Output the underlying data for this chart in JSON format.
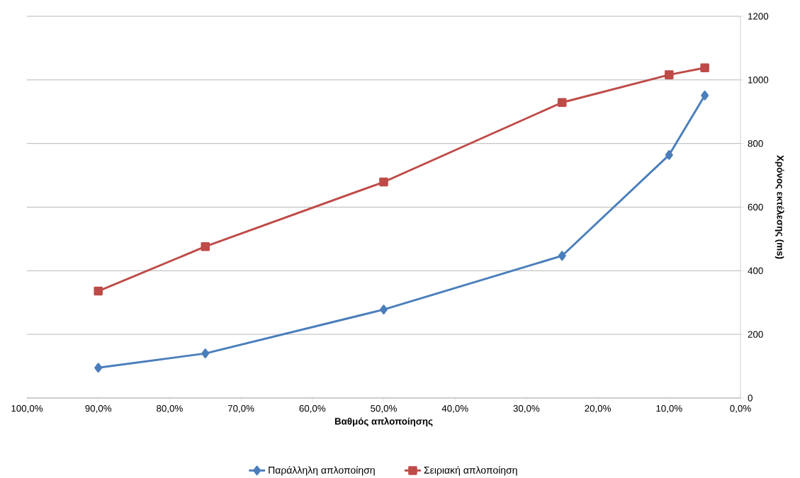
{
  "chart_data": {
    "type": "line",
    "x": [
      90,
      75,
      50,
      25,
      10,
      5
    ],
    "series": [
      {
        "name": "Παράλληλη απλοποίηση",
        "color": "#4a7ebb",
        "marker": "diamond",
        "values": [
          95,
          140,
          278,
          447,
          764,
          951
        ]
      },
      {
        "name": "Σειριακή απλοποίηση",
        "color": "#be4b48",
        "marker": "square",
        "values": [
          336,
          476,
          679,
          929,
          1016,
          1038
        ]
      }
    ],
    "xlabel": "Βαθμός απλοποίησης",
    "ylabel": "Χρόνος εκτέλεσης (ms)",
    "xlim": [
      100,
      0
    ],
    "xticks": [
      {
        "value": 100,
        "label": "100,0%"
      },
      {
        "value": 90,
        "label": "90,0%"
      },
      {
        "value": 80,
        "label": "80,0%"
      },
      {
        "value": 70,
        "label": "70,0%"
      },
      {
        "value": 60,
        "label": "60,0%"
      },
      {
        "value": 50,
        "label": "50,0%"
      },
      {
        "value": 40,
        "label": "40,0%"
      },
      {
        "value": 30,
        "label": "30,0%"
      },
      {
        "value": 20,
        "label": "20,0%"
      },
      {
        "value": 10,
        "label": "10,0%"
      },
      {
        "value": 0,
        "label": "0,0%"
      }
    ],
    "ylim": [
      0,
      1200
    ],
    "yticks": [
      0,
      200,
      400,
      600,
      800,
      1000,
      1200
    ],
    "grid": "y",
    "legend": "bottom",
    "line_style": "solid"
  }
}
